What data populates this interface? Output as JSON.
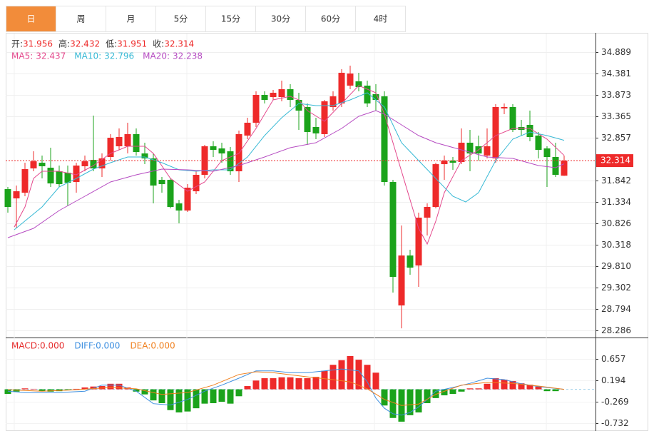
{
  "tabs": [
    "日",
    "周",
    "月",
    "5分",
    "15分",
    "30分",
    "60分",
    "4时"
  ],
  "active_tab": 0,
  "chart_data": [
    {
      "type": "candlestick",
      "up_color": "#ee2a2a",
      "down_color": "#1ba31b",
      "grid": true,
      "ylim": [
        28.134,
        35.278
      ],
      "yticks": [
        34.889,
        34.381,
        33.873,
        33.365,
        32.857,
        31.842,
        31.334,
        30.826,
        30.318,
        {
          "value": 29.81,
          "label": "29.810"
        },
        29.302,
        28.794,
        28.286
      ],
      "last_price": 32.314,
      "stats": [
        {
          "label": "开:",
          "value": 31.956
        },
        {
          "label": "高:",
          "value": 32.432
        },
        {
          "label": "低:",
          "value": 31.951
        },
        {
          "label": "收:",
          "value": 32.314
        }
      ],
      "open": [
        31.638,
        31.418,
        31.553,
        32.129,
        32.264,
        32.146,
        32.061,
        32.027,
        31.807,
        32.18,
        32.332,
        32.129,
        32.4,
        32.654,
        32.654,
        32.942,
        32.484,
        32.366,
        31.858,
        31.858,
        31.299,
        31.13,
        31.587,
        31.977,
        32.654,
        32.603,
        32.535,
        32.061,
        32.908,
        33.213,
        33.873,
        33.822,
        33.822,
        34.008,
        33.754,
        33.585,
        33.111,
        32.942,
        33.585,
        33.67,
        34.093,
        34.195,
        34.093,
        33.89,
        33.839,
        31.807,
        28.878,
        30.063,
        29.826,
        30.961,
        31.215,
        32.23,
        32.315,
        32.281,
        32.739,
        32.654,
        32.434,
        32.366,
        33.551,
        33.585,
        33.111,
        33.162,
        32.908,
        32.603,
        32.4,
        31.956
      ],
      "high": [
        31.689,
        31.723,
        32.264,
        32.535,
        32.434,
        32.62,
        32.197,
        32.197,
        32.264,
        32.434,
        33.382,
        32.484,
        32.942,
        33.077,
        33.213,
        33.077,
        32.739,
        32.484,
        31.926,
        31.892,
        31.384,
        31.756,
        32.061,
        32.688,
        32.772,
        32.739,
        32.637,
        33.026,
        33.331,
        33.958,
        33.958,
        33.992,
        34.212,
        34.127,
        33.924,
        33.67,
        33.331,
        33.754,
        33.958,
        34.483,
        34.567,
        34.398,
        34.212,
        34.127,
        33.958,
        31.858,
        30.774,
        30.199,
        31.079,
        31.299,
        32.264,
        32.434,
        32.4,
        33.077,
        33.043,
        32.908,
        33.077,
        33.653,
        33.67,
        33.653,
        33.28,
        33.5,
        32.993,
        32.654,
        32.739,
        32.432
      ],
      "low": [
        31.079,
        30.707,
        31.469,
        32.061,
        31.892,
        31.689,
        31.689,
        31.248,
        31.553,
        32.061,
        32.061,
        31.926,
        32.315,
        32.569,
        32.484,
        32.434,
        32.23,
        31.299,
        31.553,
        31.181,
        30.825,
        31.096,
        31.519,
        31.892,
        32.4,
        32.264,
        31.977,
        31.807,
        32.823,
        33.111,
        33.67,
        33.754,
        33.721,
        33.585,
        33.043,
        32.688,
        32.823,
        32.874,
        33.5,
        33.585,
        34.008,
        33.958,
        33.585,
        33.5,
        31.723,
        29.183,
        28.336,
        29.606,
        29.318,
        30.537,
        31.181,
        31.858,
        32.095,
        32.23,
        32.061,
        32.315,
        32.366,
        32.264,
        33.416,
        32.993,
        32.908,
        32.772,
        32.366,
        31.689,
        31.926,
        31.951
      ],
      "close": [
        31.215,
        31.587,
        32.112,
        32.298,
        32.18,
        31.773,
        31.756,
        31.79,
        32.197,
        32.298,
        32.129,
        32.366,
        32.857,
        32.874,
        32.942,
        32.518,
        32.366,
        31.723,
        31.756,
        31.215,
        31.13,
        31.672,
        31.977,
        32.654,
        32.569,
        32.484,
        32.061,
        32.942,
        33.213,
        33.873,
        33.754,
        33.924,
        34.008,
        33.754,
        33.5,
        32.993,
        32.959,
        33.721,
        33.839,
        34.398,
        34.381,
        34.059,
        33.67,
        33.754,
        31.807,
        29.555,
        30.063,
        29.775,
        30.961,
        31.215,
        32.23,
        32.315,
        32.264,
        32.739,
        32.484,
        32.484,
        32.654,
        33.585,
        33.585,
        33.043,
        33.043,
        32.874,
        32.569,
        32.4,
        31.977,
        32.314
      ],
      "series": [
        {
          "name": "MA5:",
          "last": 32.437,
          "color": "#e4488c",
          "x": [
            0.75,
            2,
            3,
            4,
            6,
            8,
            10,
            12,
            14,
            16,
            17,
            19,
            21,
            23,
            25,
            27,
            29,
            31,
            33,
            34,
            35,
            37,
            39,
            41,
            43,
            44,
            46,
            48,
            49,
            50,
            51,
            53,
            55,
            57,
            59,
            61,
            63,
            65
          ],
          "values": [
            30.74,
            31.215,
            31.892,
            32.061,
            32.061,
            31.977,
            32.197,
            32.484,
            32.654,
            32.654,
            32.484,
            31.892,
            31.587,
            31.807,
            32.315,
            32.484,
            33.077,
            33.754,
            33.839,
            33.754,
            33.5,
            33.246,
            33.67,
            34.093,
            33.924,
            33.416,
            32.061,
            30.707,
            30.334,
            30.876,
            31.553,
            32.315,
            32.569,
            32.908,
            33.077,
            33.077,
            32.823,
            32.437
          ]
        },
        {
          "name": "MA10:",
          "last": 32.796,
          "color": "#37b9d5",
          "x": [
            0.75,
            4,
            6,
            8,
            10,
            12,
            14,
            16,
            18,
            20,
            22,
            24,
            26,
            28,
            30,
            32,
            34,
            36,
            38,
            40,
            42,
            44,
            46,
            48,
            50,
            52,
            53.5,
            55,
            57,
            59,
            61,
            63,
            65
          ],
          "values": [
            30.673,
            31.215,
            31.689,
            31.892,
            32.112,
            32.264,
            32.4,
            32.4,
            32.264,
            32.095,
            32.061,
            32.095,
            32.095,
            32.4,
            32.908,
            33.331,
            33.67,
            33.619,
            33.619,
            33.754,
            33.924,
            33.585,
            32.739,
            32.315,
            31.892,
            31.469,
            31.333,
            31.553,
            32.315,
            32.823,
            32.993,
            32.908,
            32.796
          ]
        },
        {
          "name": "MA20:",
          "last": 32.238,
          "color": "#b64cc2",
          "x": [
            0,
            3,
            6,
            9,
            12,
            15,
            18,
            21,
            24,
            27,
            30,
            33,
            36,
            39,
            41,
            43,
            44,
            46,
            48,
            50,
            53,
            56,
            59,
            62,
            64,
            65
          ],
          "values": [
            30.486,
            30.707,
            31.13,
            31.469,
            31.807,
            31.977,
            32.112,
            32.095,
            32.061,
            32.197,
            32.4,
            32.62,
            32.739,
            33.077,
            33.365,
            33.5,
            33.416,
            33.162,
            32.908,
            32.739,
            32.569,
            32.4,
            32.366,
            32.197,
            32.146,
            32.238
          ]
        }
      ]
    },
    {
      "type": "macd",
      "up_color": "#ee2a2a",
      "down_color": "#1ba31b",
      "ylim": [
        -0.902,
        1.105
      ],
      "yticks": [
        0.657,
        0.194,
        -0.269,
        -0.732
      ],
      "macd_label": {
        "name": "MACD:",
        "value": 0,
        "value_label": "0.000",
        "color": "#e52a2a"
      },
      "values": [
        -0.1,
        -0.05,
        0.02,
        0.01,
        -0.04,
        -0.05,
        -0.04,
        -0.02,
        0.01,
        0.04,
        0.06,
        0.07,
        0.12,
        0.12,
        0.04,
        -0.05,
        -0.11,
        -0.24,
        -0.3,
        -0.45,
        -0.5,
        -0.48,
        -0.41,
        -0.31,
        -0.3,
        -0.27,
        -0.31,
        -0.15,
        0.07,
        0.19,
        0.24,
        0.24,
        0.26,
        0.26,
        0.24,
        0.24,
        0.27,
        0.4,
        0.53,
        0.63,
        0.72,
        0.64,
        0.53,
        0.36,
        -0.35,
        -0.62,
        -0.7,
        -0.56,
        -0.5,
        -0.3,
        -0.19,
        -0.13,
        -0.1,
        -0.05,
        0.02,
        0.02,
        0.12,
        0.24,
        0.21,
        0.18,
        0.13,
        0.1,
        0.06,
        -0.04,
        -0.04,
        0
      ],
      "series": [
        {
          "name": "DIFF:",
          "last": 0,
          "last_label": "0.000",
          "color": "#3d8fe0",
          "x": [
            0,
            2,
            6,
            9,
            11,
            13,
            15,
            17,
            19,
            21,
            23,
            25,
            27,
            29,
            31,
            33,
            35,
            37,
            39,
            41,
            42,
            43,
            44,
            45,
            46,
            47,
            48,
            49,
            50,
            52,
            54,
            56,
            58,
            60,
            62,
            65
          ],
          "values": [
            -0.04,
            -0.07,
            -0.07,
            -0.04,
            0.09,
            0.09,
            -0.04,
            -0.31,
            -0.34,
            -0.22,
            -0.04,
            0.09,
            0.24,
            0.4,
            0.4,
            0.36,
            0.36,
            0.4,
            0.44,
            0.4,
            0.16,
            -0.19,
            -0.41,
            -0.53,
            -0.56,
            -0.5,
            -0.38,
            -0.22,
            -0.04,
            0.04,
            0.13,
            0.24,
            0.21,
            0.12,
            0.06,
            0
          ]
        },
        {
          "name": "DEA:",
          "last": 0,
          "last_label": "0.000",
          "color": "#f0801e",
          "x": [
            0,
            4,
            8,
            12,
            15,
            18,
            21,
            24,
            27,
            29,
            31,
            35,
            38,
            40,
            42,
            44,
            46,
            48,
            50,
            53,
            56,
            59,
            62,
            65
          ],
          "values": [
            -0.01,
            -0.04,
            -0.01,
            0.04,
            0.01,
            -0.11,
            -0.07,
            0.09,
            0.32,
            0.38,
            0.36,
            0.27,
            0.21,
            0.16,
            0.01,
            -0.22,
            -0.35,
            -0.32,
            -0.11,
            0.09,
            0.15,
            0.13,
            0.07,
            0
          ]
        }
      ]
    }
  ]
}
